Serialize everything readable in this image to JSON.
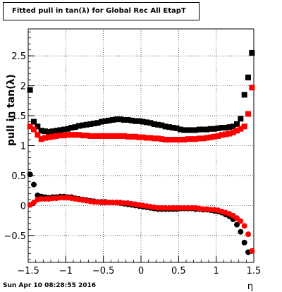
{
  "title": "Fitted pull in tan(λ) for Global Rec All EtapT",
  "footer": "Sun Apr 10 08:28:55 2016",
  "chart_data": {
    "type": "scatter",
    "title": "Fitted pull in tan(λ) for Global Rec All EtapT",
    "xlabel": "η",
    "ylabel": "pull in tan(λ)",
    "xlim": [
      -1.5,
      1.5
    ],
    "ylim": [
      -0.95,
      2.95
    ],
    "grid": true,
    "xticks": [
      -1.5,
      -1,
      -0.5,
      0,
      0.5,
      1,
      1.5
    ],
    "xticklabels": [
      "−1.5",
      "−1",
      "−0.5",
      "0",
      "0.5",
      "1",
      "1.5"
    ],
    "yticks": [
      -0.5,
      0,
      0.5,
      1,
      1.5,
      2,
      2.5
    ],
    "yticklabels": [
      "−0.5",
      "0",
      "0.5",
      "1",
      "1.5",
      "2",
      "2.5"
    ],
    "series": [
      {
        "color": "#000000",
        "marker": "square",
        "x": [
          -1.475,
          -1.425,
          -1.375,
          -1.325,
          -1.275,
          -1.225,
          -1.175,
          -1.125,
          -1.075,
          -1.025,
          -0.975,
          -0.925,
          -0.875,
          -0.825,
          -0.775,
          -0.725,
          -0.675,
          -0.625,
          -0.575,
          -0.525,
          -0.475,
          -0.425,
          -0.375,
          -0.325,
          -0.275,
          -0.225,
          -0.175,
          -0.125,
          -0.075,
          -0.025,
          0.025,
          0.075,
          0.125,
          0.175,
          0.225,
          0.275,
          0.325,
          0.375,
          0.425,
          0.475,
          0.525,
          0.575,
          0.625,
          0.675,
          0.725,
          0.775,
          0.825,
          0.875,
          0.925,
          0.975,
          1.025,
          1.075,
          1.125,
          1.175,
          1.225,
          1.275,
          1.325,
          1.375,
          1.425,
          1.475
        ],
        "y": [
          1.93,
          1.4,
          1.32,
          1.25,
          1.24,
          1.23,
          1.24,
          1.25,
          1.26,
          1.27,
          1.28,
          1.3,
          1.31,
          1.33,
          1.34,
          1.35,
          1.36,
          1.37,
          1.38,
          1.4,
          1.41,
          1.42,
          1.43,
          1.44,
          1.44,
          1.43,
          1.43,
          1.42,
          1.41,
          1.41,
          1.4,
          1.39,
          1.38,
          1.36,
          1.35,
          1.34,
          1.32,
          1.31,
          1.3,
          1.29,
          1.27,
          1.26,
          1.26,
          1.26,
          1.26,
          1.27,
          1.27,
          1.27,
          1.28,
          1.28,
          1.29,
          1.3,
          1.3,
          1.31,
          1.32,
          1.36,
          1.45,
          1.85,
          2.14,
          2.55
        ]
      },
      {
        "color": "#ff0000",
        "marker": "square",
        "x": [
          -1.475,
          -1.425,
          -1.375,
          -1.325,
          -1.275,
          -1.225,
          -1.175,
          -1.125,
          -1.075,
          -1.025,
          -0.975,
          -0.925,
          -0.875,
          -0.825,
          -0.775,
          -0.725,
          -0.675,
          -0.625,
          -0.575,
          -0.525,
          -0.475,
          -0.425,
          -0.375,
          -0.325,
          -0.275,
          -0.225,
          -0.175,
          -0.125,
          -0.075,
          -0.025,
          0.025,
          0.075,
          0.125,
          0.175,
          0.225,
          0.275,
          0.325,
          0.375,
          0.425,
          0.475,
          0.525,
          0.575,
          0.625,
          0.675,
          0.725,
          0.775,
          0.825,
          0.875,
          0.925,
          0.975,
          1.025,
          1.075,
          1.125,
          1.175,
          1.225,
          1.275,
          1.325,
          1.375,
          1.425,
          1.475
        ],
        "y": [
          1.32,
          1.27,
          1.18,
          1.11,
          1.13,
          1.14,
          1.15,
          1.16,
          1.17,
          1.17,
          1.18,
          1.18,
          1.18,
          1.18,
          1.17,
          1.17,
          1.16,
          1.16,
          1.16,
          1.16,
          1.16,
          1.16,
          1.16,
          1.16,
          1.16,
          1.16,
          1.15,
          1.15,
          1.15,
          1.14,
          1.14,
          1.13,
          1.13,
          1.12,
          1.12,
          1.11,
          1.1,
          1.1,
          1.1,
          1.1,
          1.1,
          1.1,
          1.11,
          1.11,
          1.11,
          1.12,
          1.12,
          1.13,
          1.14,
          1.15,
          1.16,
          1.18,
          1.19,
          1.2,
          1.22,
          1.25,
          1.28,
          1.32,
          1.53,
          1.97
        ]
      },
      {
        "color": "#000000",
        "marker": "circle",
        "x": [
          -1.475,
          -1.425,
          -1.375,
          -1.325,
          -1.275,
          -1.225,
          -1.175,
          -1.125,
          -1.075,
          -1.025,
          -0.975,
          -0.925,
          -0.875,
          -0.825,
          -0.775,
          -0.725,
          -0.675,
          -0.625,
          -0.575,
          -0.525,
          -0.475,
          -0.425,
          -0.375,
          -0.325,
          -0.275,
          -0.225,
          -0.175,
          -0.125,
          -0.075,
          -0.025,
          0.025,
          0.075,
          0.125,
          0.175,
          0.225,
          0.275,
          0.325,
          0.375,
          0.425,
          0.475,
          0.525,
          0.575,
          0.625,
          0.675,
          0.725,
          0.775,
          0.825,
          0.875,
          0.925,
          0.975,
          1.025,
          1.075,
          1.125,
          1.175,
          1.225,
          1.275,
          1.325,
          1.375,
          1.425,
          1.475
        ],
        "y": [
          0.52,
          0.35,
          0.17,
          0.15,
          0.14,
          0.13,
          0.14,
          0.14,
          0.15,
          0.15,
          0.14,
          0.14,
          0.12,
          0.11,
          0.1,
          0.09,
          0.08,
          0.07,
          0.06,
          0.06,
          0.06,
          0.05,
          0.05,
          0.05,
          0.04,
          0.03,
          0.02,
          0.01,
          0.0,
          -0.01,
          -0.02,
          -0.03,
          -0.04,
          -0.05,
          -0.06,
          -0.06,
          -0.06,
          -0.06,
          -0.06,
          -0.06,
          -0.05,
          -0.05,
          -0.05,
          -0.05,
          -0.06,
          -0.06,
          -0.07,
          -0.07,
          -0.08,
          -0.09,
          -0.1,
          -0.12,
          -0.15,
          -0.18,
          -0.23,
          -0.32,
          -0.44,
          -0.62,
          -0.78,
          -0.76
        ]
      },
      {
        "color": "#ff0000",
        "marker": "circle",
        "x": [
          -1.475,
          -1.425,
          -1.375,
          -1.325,
          -1.275,
          -1.225,
          -1.175,
          -1.125,
          -1.075,
          -1.025,
          -0.975,
          -0.925,
          -0.875,
          -0.825,
          -0.775,
          -0.725,
          -0.675,
          -0.625,
          -0.575,
          -0.525,
          -0.475,
          -0.425,
          -0.375,
          -0.325,
          -0.275,
          -0.225,
          -0.175,
          -0.125,
          -0.075,
          -0.025,
          0.025,
          0.075,
          0.125,
          0.175,
          0.225,
          0.275,
          0.325,
          0.375,
          0.425,
          0.475,
          0.525,
          0.575,
          0.625,
          0.675,
          0.725,
          0.775,
          0.825,
          0.875,
          0.925,
          0.975,
          1.025,
          1.075,
          1.125,
          1.175,
          1.225,
          1.275,
          1.325,
          1.375,
          1.425,
          1.475
        ],
        "y": [
          0.01,
          0.05,
          0.1,
          0.11,
          0.11,
          0.11,
          0.12,
          0.12,
          0.13,
          0.13,
          0.13,
          0.12,
          0.11,
          0.1,
          0.09,
          0.08,
          0.07,
          0.06,
          0.06,
          0.05,
          0.05,
          0.05,
          0.05,
          0.05,
          0.05,
          0.04,
          0.04,
          0.03,
          0.02,
          0.01,
          0.0,
          -0.01,
          -0.02,
          -0.03,
          -0.04,
          -0.04,
          -0.04,
          -0.04,
          -0.04,
          -0.04,
          -0.04,
          -0.04,
          -0.04,
          -0.04,
          -0.04,
          -0.05,
          -0.06,
          -0.06,
          -0.07,
          -0.07,
          -0.08,
          -0.1,
          -0.12,
          -0.14,
          -0.17,
          -0.21,
          -0.26,
          -0.34,
          -0.48,
          -0.76
        ]
      }
    ]
  }
}
